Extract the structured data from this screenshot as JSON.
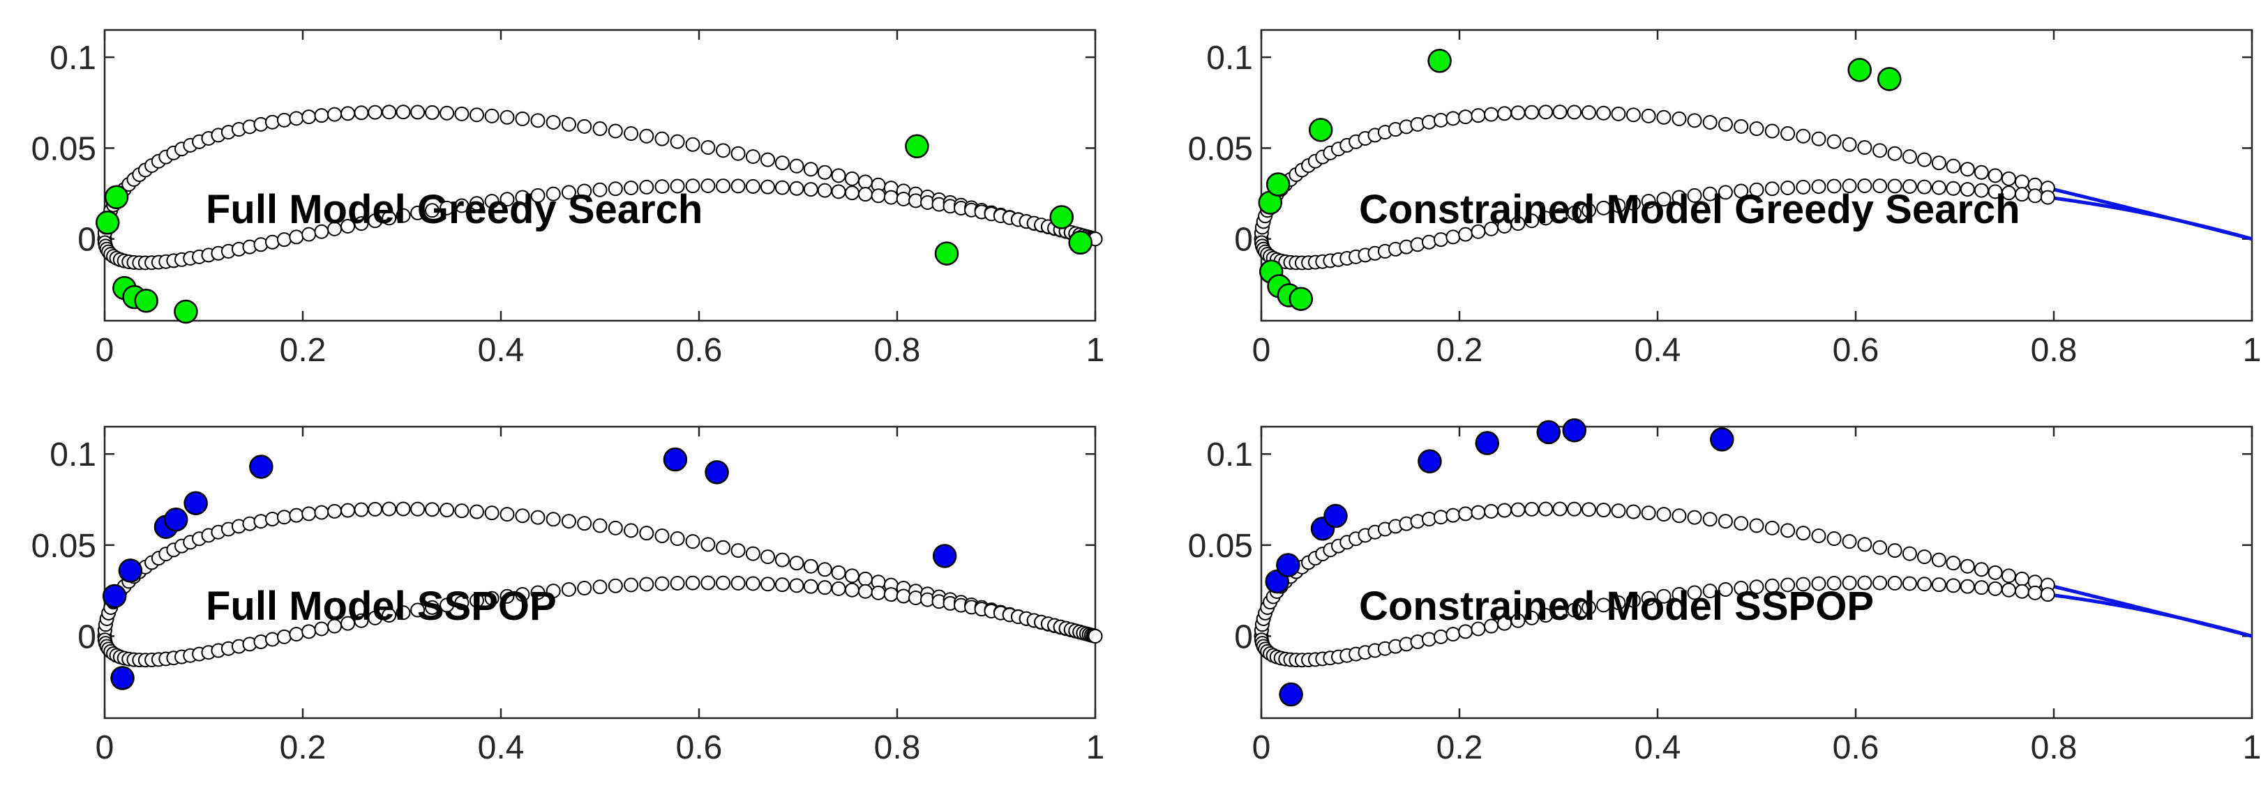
{
  "colors": {
    "axis": "#262626",
    "marker_face": "#ffffff",
    "marker_edge": "#000000",
    "greedy_sensor": "#00ee00",
    "sspop_sensor": "#0000ee",
    "constraint_line": "#0a14e6"
  },
  "chart_data": [
    {
      "type": "scatter",
      "title": "",
      "annotation": "Full Model Greedy Search",
      "xlim": [
        0,
        1
      ],
      "ylim": [
        -0.045,
        0.115
      ],
      "xticks": [
        "0",
        "0.2",
        "0.4",
        "0.6",
        "0.8",
        "1"
      ],
      "yticks": [
        "0",
        "0.05",
        "0.1"
      ],
      "profile_marker_range": [
        0,
        1
      ],
      "constraint_line": false,
      "sensor_color": "#00ee00",
      "sensors": [
        [
          0.003,
          0.009
        ],
        [
          0.012,
          0.023
        ],
        [
          0.02,
          -0.027
        ],
        [
          0.03,
          -0.032
        ],
        [
          0.042,
          -0.034
        ],
        [
          0.082,
          -0.04
        ],
        [
          0.82,
          0.051
        ],
        [
          0.966,
          0.012
        ],
        [
          0.985,
          -0.002
        ],
        [
          0.85,
          -0.008
        ]
      ]
    },
    {
      "type": "scatter",
      "title": "",
      "annotation": "Constrained Model Greedy Search",
      "xlim": [
        0,
        1
      ],
      "ylim": [
        -0.045,
        0.115
      ],
      "xticks": [
        "0",
        "0.2",
        "0.4",
        "0.6",
        "0.8",
        "1"
      ],
      "yticks": [
        "0",
        "0.05",
        "0.1"
      ],
      "profile_marker_range": [
        0,
        0.8
      ],
      "constraint_line": true,
      "sensor_color": "#00ee00",
      "sensors": [
        [
          0.009,
          0.02
        ],
        [
          0.017,
          0.03
        ],
        [
          0.06,
          0.06
        ],
        [
          0.18,
          0.098
        ],
        [
          0.604,
          0.093
        ],
        [
          0.634,
          0.088
        ],
        [
          0.01,
          -0.018
        ],
        [
          0.018,
          -0.026
        ],
        [
          0.028,
          -0.031
        ],
        [
          0.04,
          -0.033
        ]
      ]
    },
    {
      "type": "scatter",
      "title": "",
      "annotation": "Full Model SSPOP",
      "xlim": [
        0,
        1
      ],
      "ylim": [
        -0.045,
        0.115
      ],
      "xticks": [
        "0",
        "0.2",
        "0.4",
        "0.6",
        "0.8",
        "1"
      ],
      "yticks": [
        "0",
        "0.05",
        "0.1"
      ],
      "profile_marker_range": [
        0,
        1
      ],
      "constraint_line": false,
      "sensor_color": "#0000ee",
      "sensors": [
        [
          0.01,
          0.022
        ],
        [
          0.026,
          0.036
        ],
        [
          0.062,
          0.06
        ],
        [
          0.072,
          0.064
        ],
        [
          0.092,
          0.073
        ],
        [
          0.158,
          0.093
        ],
        [
          0.576,
          0.097
        ],
        [
          0.618,
          0.09
        ],
        [
          0.848,
          0.044
        ],
        [
          0.018,
          -0.023
        ]
      ]
    },
    {
      "type": "scatter",
      "title": "",
      "annotation": "Constrained Model SSPOP",
      "xlim": [
        0,
        1
      ],
      "ylim": [
        -0.045,
        0.115
      ],
      "xticks": [
        "0",
        "0.2",
        "0.4",
        "0.6",
        "0.8",
        "1"
      ],
      "yticks": [
        "0",
        "0.05",
        "0.1"
      ],
      "profile_marker_range": [
        0,
        0.8
      ],
      "constraint_line": true,
      "sensor_color": "#0000ee",
      "sensors": [
        [
          0.016,
          0.03
        ],
        [
          0.027,
          0.039
        ],
        [
          0.062,
          0.059
        ],
        [
          0.075,
          0.066
        ],
        [
          0.17,
          0.096
        ],
        [
          0.228,
          0.106
        ],
        [
          0.29,
          0.112
        ],
        [
          0.316,
          0.113
        ],
        [
          0.465,
          0.108
        ],
        [
          0.03,
          -0.032
        ]
      ]
    }
  ]
}
